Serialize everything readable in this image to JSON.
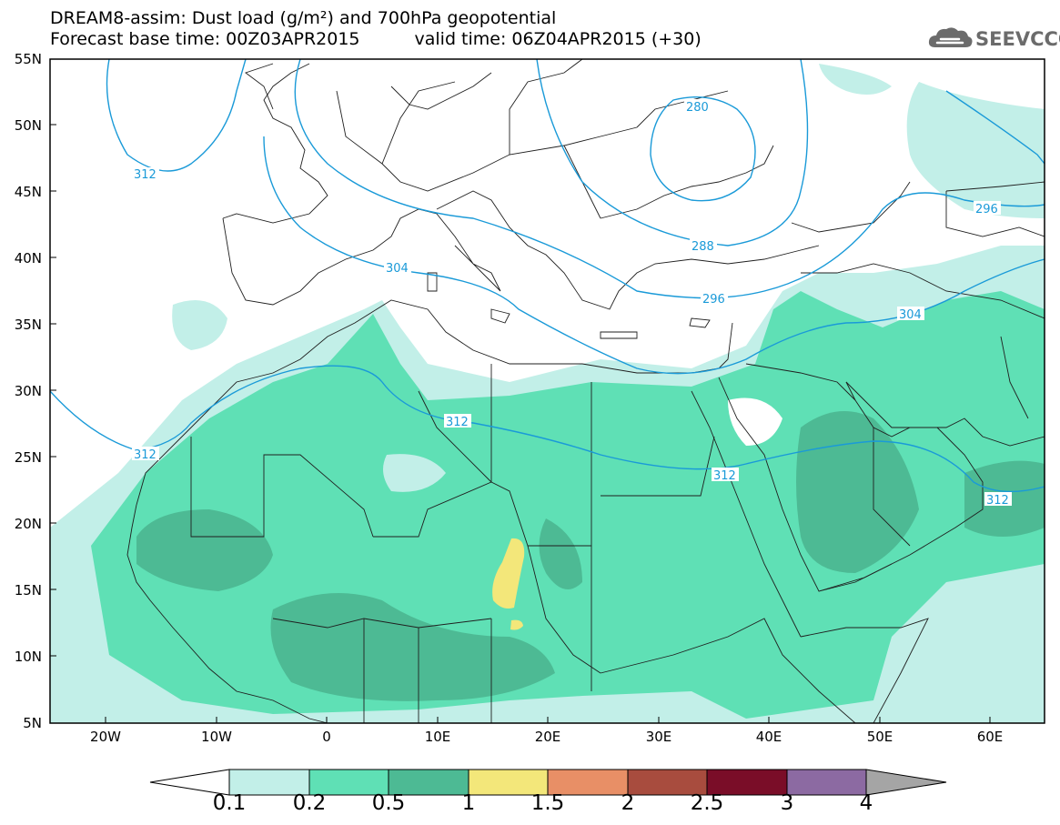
{
  "title": {
    "line1": "DREAM8-assim: Dust load (g/m²) and 700hPa geopotential",
    "base_time": "Forecast base time: 00Z03APR2015",
    "valid_time": "valid time: 06Z04APR2015 (+30)"
  },
  "logo": {
    "text": "SEEVCCC",
    "icon": "cloud-logo-icon"
  },
  "map": {
    "lat_labels": [
      "55N",
      "50N",
      "45N",
      "40N",
      "35N",
      "30N",
      "25N",
      "20N",
      "15N",
      "10N",
      "5N"
    ],
    "lon_labels": [
      "20W",
      "10W",
      "0",
      "10E",
      "20E",
      "30E",
      "40E",
      "50E",
      "60E"
    ],
    "contour_labels": [
      "312",
      "280",
      "296",
      "288",
      "304",
      "296",
      "304",
      "312",
      "312",
      "312",
      "312"
    ]
  },
  "colorbar": {
    "labels": [
      "0.1",
      "0.2",
      "0.5",
      "1",
      "1.5",
      "2",
      "2.5",
      "3",
      "4"
    ],
    "colors": [
      "#ffffff",
      "#c2efe8",
      "#5fe0b5",
      "#4dba94",
      "#f3e77a",
      "#e88f66",
      "#a84c3e",
      "#7a0d28",
      "#8c6aa2",
      "#a5a5a5"
    ]
  },
  "colors": {
    "dust_0_1": "#c2efe8",
    "dust_0_2": "#5fe0b5",
    "dust_0_5": "#4dba94",
    "dust_1": "#f3e77a",
    "geopotential_line": "#1a9ad8"
  }
}
